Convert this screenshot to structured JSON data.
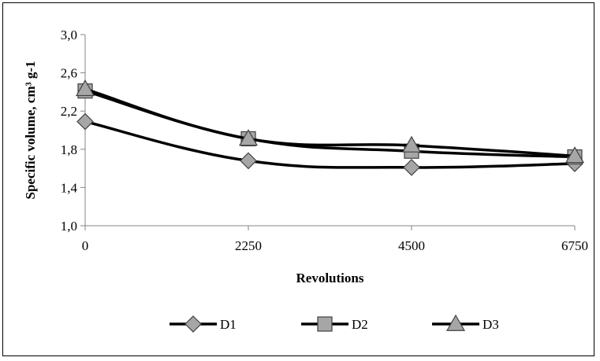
{
  "chart_data": {
    "type": "line",
    "title": "",
    "xlabel": "Revolutions",
    "ylabel": "Specific volume, cm³ g-1",
    "categories": [
      "0",
      "2250",
      "4500",
      "6750"
    ],
    "x": [
      0,
      2250,
      4500,
      6750
    ],
    "ylim": [
      1.0,
      3.0
    ],
    "yticks": [
      "1,0",
      "1,4",
      "1,8",
      "2,2",
      "2,6",
      "3,0"
    ],
    "ytick_values": [
      1.0,
      1.4,
      1.8,
      2.2,
      2.6,
      3.0
    ],
    "grid": false,
    "legend_position": "bottom",
    "series": [
      {
        "name": "D1",
        "marker": "diamond",
        "values": [
          2.09,
          1.68,
          1.61,
          1.65
        ]
      },
      {
        "name": "D2",
        "marker": "square",
        "values": [
          2.41,
          1.91,
          1.78,
          1.72
        ]
      },
      {
        "name": "D3",
        "marker": "triangle",
        "values": [
          2.43,
          1.91,
          1.84,
          1.73
        ]
      }
    ],
    "colors": {
      "line": "#000000",
      "marker_fill": "#a6a6a6",
      "marker_stroke": "#404040"
    }
  }
}
